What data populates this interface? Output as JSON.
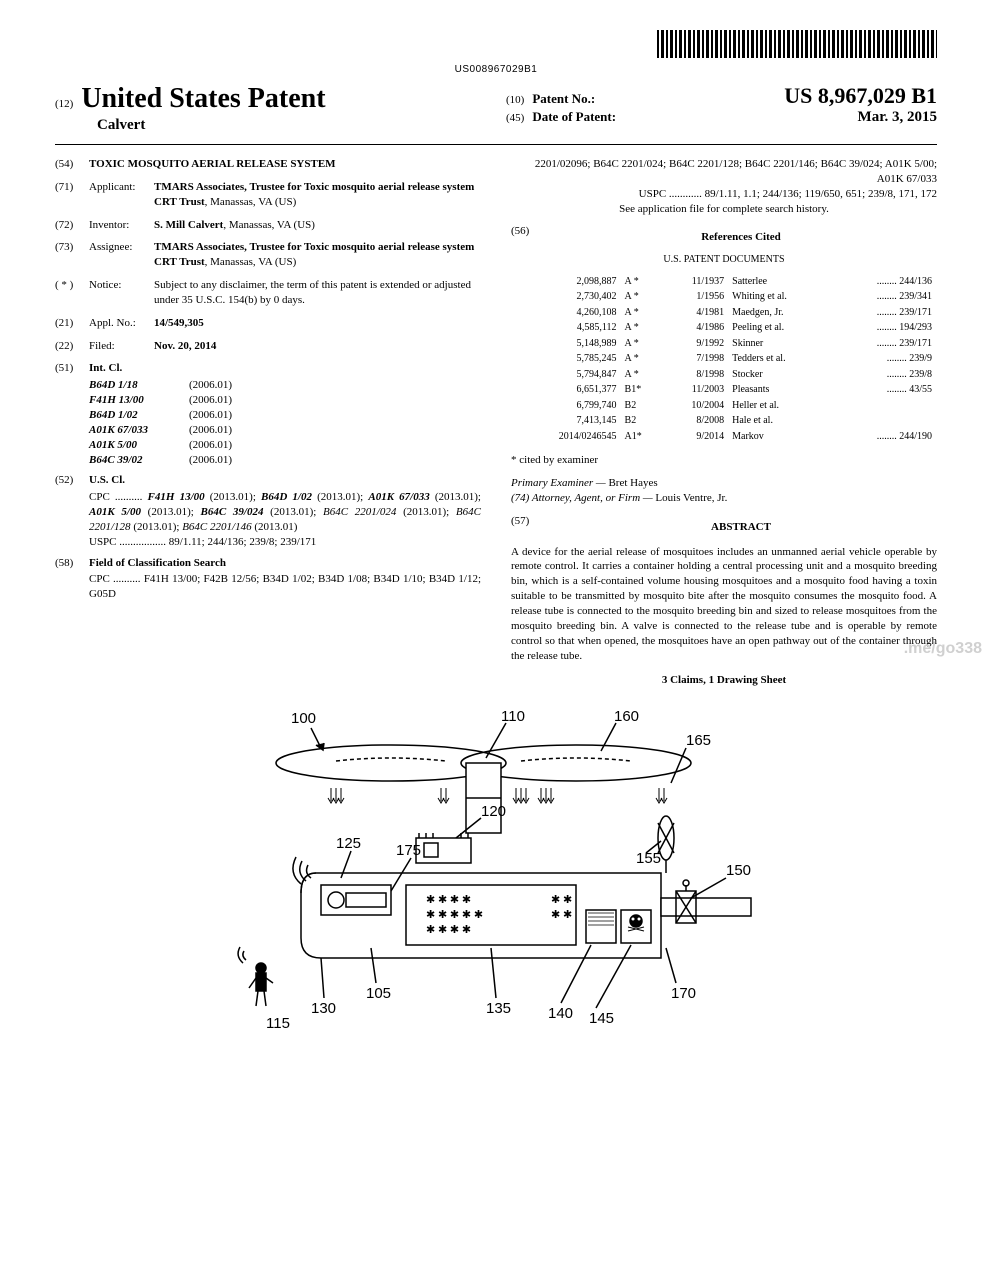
{
  "barcode_text": "US008967029B1",
  "header": {
    "doc_kind": "(12)",
    "country": "United States Patent",
    "inventor": "Calvert",
    "patno_code": "(10)",
    "patno_label": "Patent No.:",
    "patno": "US 8,967,029 B1",
    "date_code": "(45)",
    "date_label": "Date of Patent:",
    "date": "Mar. 3, 2015"
  },
  "left": {
    "title_code": "(54)",
    "title": "TOXIC MOSQUITO AERIAL RELEASE SYSTEM",
    "applicant_code": "(71)",
    "applicant_label": "Applicant:",
    "applicant": "TMARS Associates, Trustee for Toxic mosquito aerial release system CRT Trust, Manassas, VA (US)",
    "inventor_code": "(72)",
    "inventor_label": "Inventor:",
    "inventor": "S. Mill Calvert, Manassas, VA (US)",
    "assignee_code": "(73)",
    "assignee_label": "Assignee:",
    "assignee": "TMARS Associates, Trustee for Toxic mosquito aerial release system CRT Trust, Manassas, VA (US)",
    "notice_code": "( * )",
    "notice_label": "Notice:",
    "notice": "Subject to any disclaimer, the term of this patent is extended or adjusted under 35 U.S.C. 154(b) by 0 days.",
    "applno_code": "(21)",
    "applno_label": "Appl. No.:",
    "applno": "14/549,305",
    "filed_code": "(22)",
    "filed_label": "Filed:",
    "filed": "Nov. 20, 2014",
    "intcl_code": "(51)",
    "intcl_label": "Int. Cl.",
    "intcl": [
      {
        "c": "B64D 1/18",
        "v": "(2006.01)"
      },
      {
        "c": "F41H 13/00",
        "v": "(2006.01)"
      },
      {
        "c": "B64D 1/02",
        "v": "(2006.01)"
      },
      {
        "c": "A01K 67/033",
        "v": "(2006.01)"
      },
      {
        "c": "A01K 5/00",
        "v": "(2006.01)"
      },
      {
        "c": "B64C 39/02",
        "v": "(2006.01)"
      }
    ],
    "uscl_code": "(52)",
    "uscl_label": "U.S. Cl.",
    "cpc": "CPC .......... F41H 13/00 (2013.01); B64D 1/02 (2013.01); A01K 67/033 (2013.01); A01K 5/00 (2013.01); B64C 39/024 (2013.01); B64C 2201/024 (2013.01); B64C 2201/128 (2013.01); B64C 2201/146 (2013.01)",
    "uspc": "USPC ................. 89/1.11; 244/136; 239/8; 239/171",
    "search_code": "(58)",
    "search_label": "Field of Classification Search",
    "search_cpc": "CPC .......... F41H 13/00; F42B 12/56; B34D 1/02; B34D 1/08; B34D 1/10; B34D 1/12; G05D"
  },
  "right": {
    "search_cont": "2201/02096; B64C 2201/024; B64C 2201/128; B64C 2201/146; B64C 39/024; A01K 5/00; A01K 67/033",
    "search_uspc": "USPC ............ 89/1.11, 1.1; 244/136; 119/650, 651; 239/8, 171, 172",
    "search_note": "See application file for complete search history.",
    "refs_code": "(56)",
    "refs_label": "References Cited",
    "refs_subhead": "U.S. PATENT DOCUMENTS",
    "refs": [
      {
        "n": "2,098,887",
        "t": "A *",
        "d": "11/1937",
        "who": "Satterlee",
        "cls": "244/136"
      },
      {
        "n": "2,730,402",
        "t": "A *",
        "d": "1/1956",
        "who": "Whiting et al.",
        "cls": "239/341"
      },
      {
        "n": "4,260,108",
        "t": "A *",
        "d": "4/1981",
        "who": "Maedgen, Jr.",
        "cls": "239/171"
      },
      {
        "n": "4,585,112",
        "t": "A *",
        "d": "4/1986",
        "who": "Peeling et al.",
        "cls": "194/293"
      },
      {
        "n": "5,148,989",
        "t": "A *",
        "d": "9/1992",
        "who": "Skinner",
        "cls": "239/171"
      },
      {
        "n": "5,785,245",
        "t": "A *",
        "d": "7/1998",
        "who": "Tedders et al.",
        "cls": "239/9"
      },
      {
        "n": "5,794,847",
        "t": "A *",
        "d": "8/1998",
        "who": "Stocker",
        "cls": "239/8"
      },
      {
        "n": "6,651,377",
        "t": "B1*",
        "d": "11/2003",
        "who": "Pleasants",
        "cls": "43/55"
      },
      {
        "n": "6,799,740",
        "t": "B2",
        "d": "10/2004",
        "who": "Heller et al.",
        "cls": ""
      },
      {
        "n": "7,413,145",
        "t": "B2",
        "d": "8/2008",
        "who": "Hale et al.",
        "cls": ""
      },
      {
        "n": "2014/0246545",
        "t": "A1*",
        "d": "9/2014",
        "who": "Markov",
        "cls": "244/190"
      }
    ],
    "cited_note": "* cited by examiner",
    "examiner_label": "Primary Examiner —",
    "examiner": "Bret Hayes",
    "attorney_label": "(74) Attorney, Agent, or Firm —",
    "attorney": "Louis Ventre, Jr.",
    "abstract_code": "(57)",
    "abstract_label": "ABSTRACT",
    "abstract": "A device for the aerial release of mosquitoes includes an unmanned aerial vehicle operable by remote control. It carries a container holding a central processing unit and a mosquito breeding bin, which is a self-contained volume housing mosquitoes and a mosquito food having a toxin suitable to be transmitted by mosquito bite after the mosquito consumes the mosquito food. A release tube is connected to the mosquito breeding bin and sized to release mosquitoes from the mosquito breeding bin. A valve is connected to the release tube and is operable by remote control so that when opened, the mosquitoes have an open pathway out of the container through the release tube.",
    "claims": "3 Claims, 1 Drawing Sheet"
  },
  "figure": {
    "labels": [
      "100",
      "110",
      "160",
      "165",
      "120",
      "125",
      "175",
      "155",
      "150",
      "105",
      "130",
      "135",
      "140",
      "145",
      "170",
      "115"
    ]
  },
  "watermark": ".me/go338"
}
